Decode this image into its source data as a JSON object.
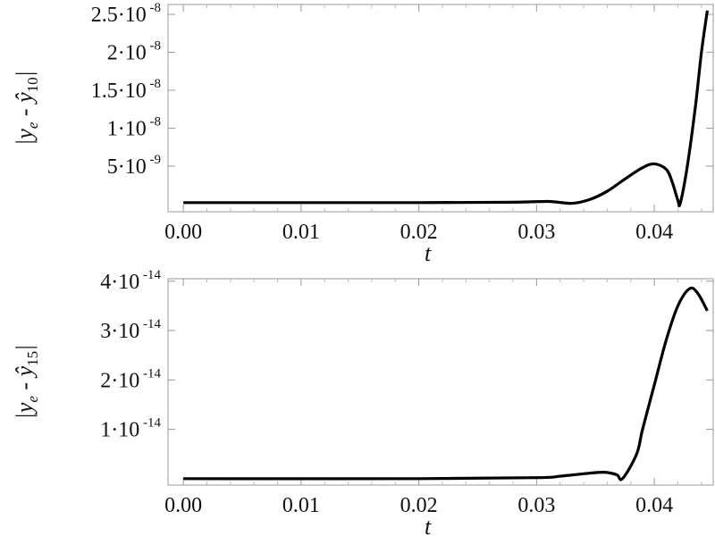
{
  "chart_data": [
    {
      "type": "line",
      "xlabel": "t",
      "ylabel": {
        "base": "y",
        "sub_e": "e",
        "hat": "ŷ",
        "sub_n": "10"
      },
      "xlim": [
        -0.0013,
        0.045
      ],
      "ylim": [
        -1e-09,
        2.63e-08
      ],
      "xticks": [
        0.0,
        0.01,
        0.02,
        0.03,
        0.04
      ],
      "xtick_labels": [
        "0.00",
        "0.01",
        "0.02",
        "0.03",
        "0.04"
      ],
      "yticks": [
        {
          "value": 5e-09,
          "mant": "5",
          "exp": "-9"
        },
        {
          "value": 1e-08,
          "mant": "1",
          "exp": "-8"
        },
        {
          "value": 1.5e-08,
          "mant": "1.5",
          "exp": "-8"
        },
        {
          "value": 2e-08,
          "mant": "2",
          "exp": "-8"
        },
        {
          "value": 2.5e-08,
          "mant": "2.5",
          "exp": "-8"
        }
      ],
      "grid": false,
      "color": "#000000",
      "x": [
        0,
        0.01,
        0.02,
        0.028,
        0.031,
        0.033,
        0.0345,
        0.036,
        0.0375,
        0.039,
        0.04,
        0.041,
        0.0415,
        0.042,
        0.0422,
        0.0428,
        0.0435,
        0.044,
        0.0445
      ],
      "y": [
        2e-10,
        2e-10,
        2e-10,
        2.5e-10,
        3.5e-10,
        1e-10,
        6e-10,
        1.7e-09,
        3.3e-09,
        4.8e-09,
        5.3e-09,
        4.6e-09,
        3e-09,
        5e-10,
        1e-10,
        5e-09,
        1.3e-08,
        2e-08,
        2.55e-08
      ]
    },
    {
      "type": "line",
      "xlabel": "t",
      "ylabel": {
        "base": "y",
        "sub_e": "e",
        "hat": "ŷ",
        "sub_n": "15"
      },
      "xlim": [
        -0.0013,
        0.045
      ],
      "ylim": [
        -1.3e-15,
        4.05e-14
      ],
      "xticks": [
        0.0,
        0.01,
        0.02,
        0.03,
        0.04
      ],
      "xtick_labels": [
        "0.00",
        "0.01",
        "0.02",
        "0.03",
        "0.04"
      ],
      "yticks": [
        {
          "value": 1e-14,
          "mant": "1",
          "exp": "-14"
        },
        {
          "value": 2e-14,
          "mant": "2",
          "exp": "-14"
        },
        {
          "value": 3e-14,
          "mant": "3",
          "exp": "-14"
        },
        {
          "value": 4e-14,
          "mant": "4",
          "exp": "-14"
        }
      ],
      "grid": false,
      "color": "#000000",
      "x": [
        0,
        0.02,
        0.03,
        0.032,
        0.034,
        0.0357,
        0.0368,
        0.0373,
        0.0385,
        0.039,
        0.04,
        0.041,
        0.042,
        0.043,
        0.0437,
        0.0445
      ],
      "y": [
        0,
        0,
        2e-16,
        5e-16,
        1e-15,
        1.3e-15,
        8e-16,
        0,
        5e-15,
        1e-14,
        1.9e-14,
        2.8e-14,
        3.5e-14,
        3.85e-14,
        3.75e-14,
        3.4e-14
      ]
    }
  ]
}
